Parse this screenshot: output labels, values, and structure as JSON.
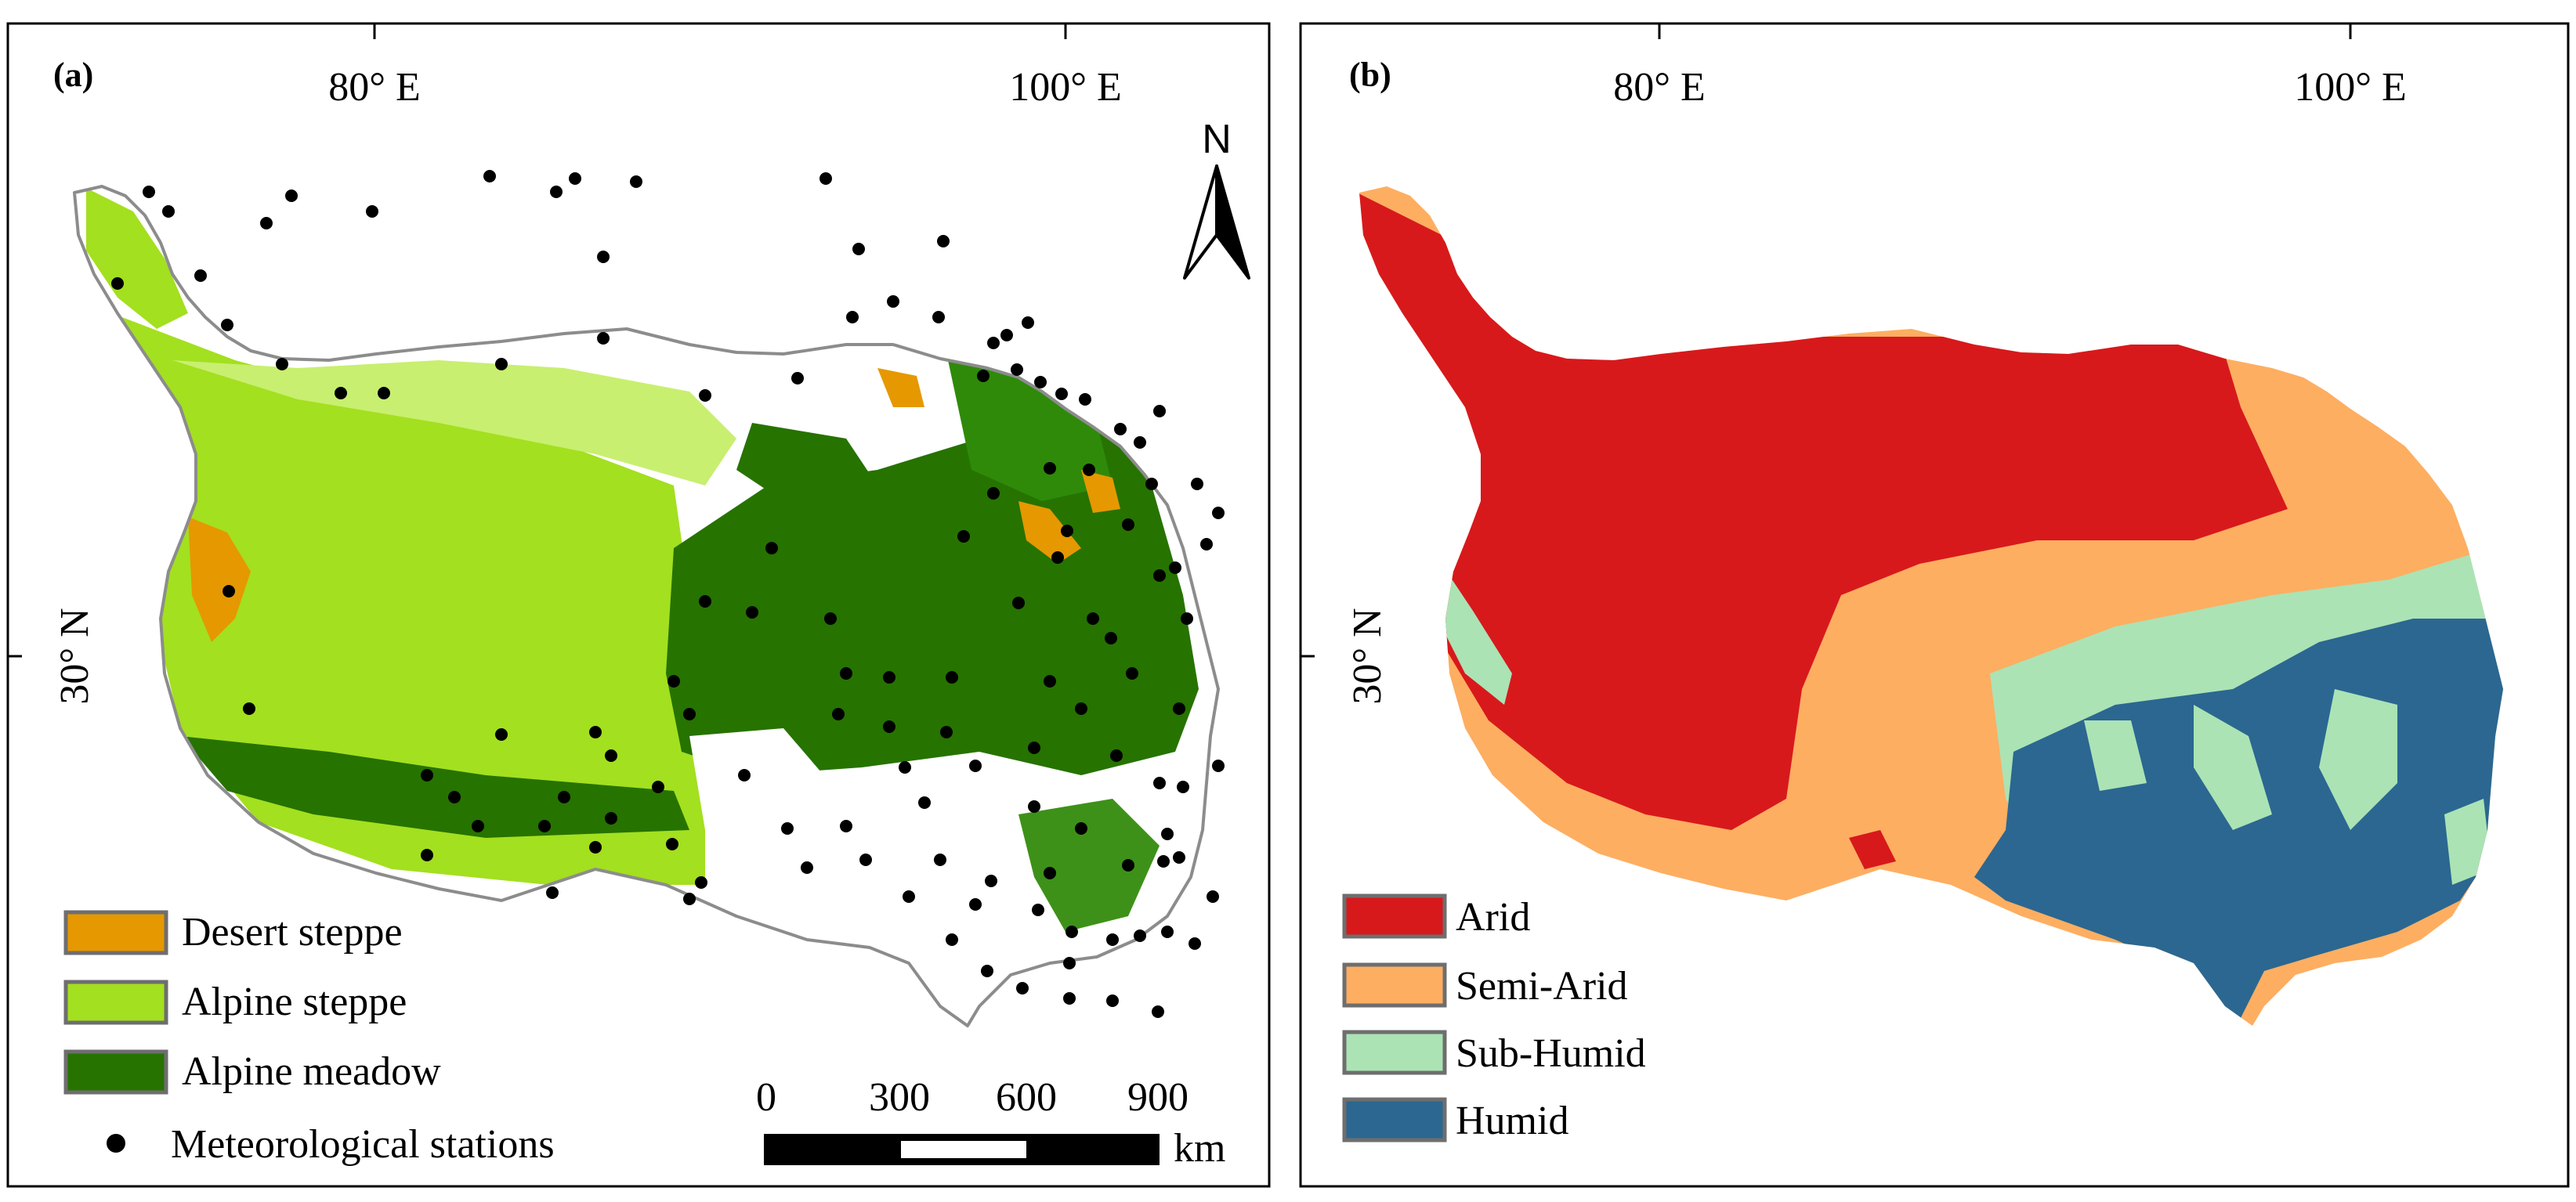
{
  "panels": [
    {
      "id": "a",
      "label": "(a)",
      "longitude_labels": [
        "80° E",
        "100° E"
      ],
      "latitude_label": "30° N",
      "north_label": "N",
      "legend": [
        {
          "name": "Desert steppe",
          "color": "#e69800"
        },
        {
          "name": "Alpine steppe",
          "color": "#a3e01f"
        },
        {
          "name": "Alpine meadow",
          "color": "#267300"
        },
        {
          "name": "Meteorological stations",
          "color": "#000000",
          "symbol": "dot"
        }
      ],
      "scale_bar": {
        "ticks": [
          "0",
          "300",
          "600",
          "900"
        ],
        "unit": "km"
      }
    },
    {
      "id": "b",
      "label": "(b)",
      "longitude_labels": [
        "80° E",
        "100° E"
      ],
      "latitude_label": "30° N",
      "legend": [
        {
          "name": "Arid",
          "color": "#d7191c"
        },
        {
          "name": "Semi-Arid",
          "color": "#fdae61"
        },
        {
          "name": "Sub-Humid",
          "color": "#abe3b5"
        },
        {
          "name": "Humid",
          "color": "#2b6791"
        }
      ]
    }
  ]
}
